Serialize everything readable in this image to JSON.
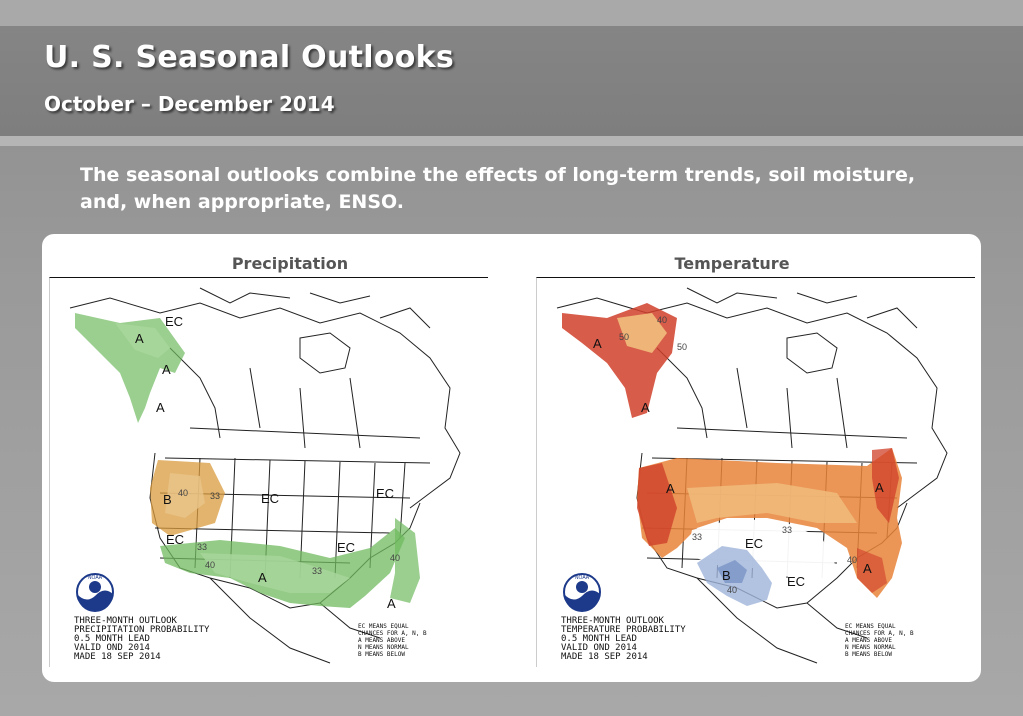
{
  "header": {
    "title": "U. S. Seasonal Outlooks",
    "subtitle": "October – December 2014"
  },
  "intro": {
    "text": "The seasonal outlooks combine the effects of long-term trends, soil moisture, and, when appropriate, ENSO."
  },
  "maps": [
    {
      "label": "Precipitation",
      "caption_lines": [
        "THREE-MONTH OUTLOOK",
        "PRECIPITATION PROBABILITY",
        "0.5 MONTH LEAD",
        "VALID OND 2014",
        "MADE 18 SEP 2014"
      ],
      "legend_lines": [
        "EC MEANS EQUAL",
        "CHANCES FOR A, N, B",
        "A MEANS ABOVE",
        "N MEANS NORMAL",
        "B MEANS BELOW"
      ],
      "region_labels": [
        "EC",
        "A",
        "A",
        "A",
        "B",
        "EC",
        "EC",
        "EC",
        "EC",
        "A",
        "A",
        "33",
        "40",
        "33",
        "33",
        "40",
        "40"
      ],
      "colors": {
        "above": "#6fba5f",
        "above_light": "#a8d69b",
        "below": "#d99b3c",
        "below_light": "#e8c48a"
      }
    },
    {
      "label": "Temperature",
      "caption_lines": [
        "THREE-MONTH OUTLOOK",
        "TEMPERATURE PROBABILITY",
        "0.5 MONTH LEAD",
        "VALID OND 2014",
        "MADE 18 SEP 2014"
      ],
      "legend_lines": [
        "EC MEANS EQUAL",
        "CHANCES FOR A, N, B",
        "A MEANS ABOVE",
        "N MEANS NORMAL",
        "B MEANS BELOW"
      ],
      "region_labels": [
        "A",
        "A",
        "A",
        "A",
        "A",
        "EC",
        "B",
        "EC",
        "40",
        "50",
        "50",
        "33",
        "33",
        "40",
        "40"
      ],
      "colors": {
        "above_dark": "#d0402a",
        "above_mid": "#e8823a",
        "above_light": "#f0b97a",
        "below": "#9fb4d9"
      }
    }
  ],
  "logo": {
    "text": "NOAA"
  }
}
